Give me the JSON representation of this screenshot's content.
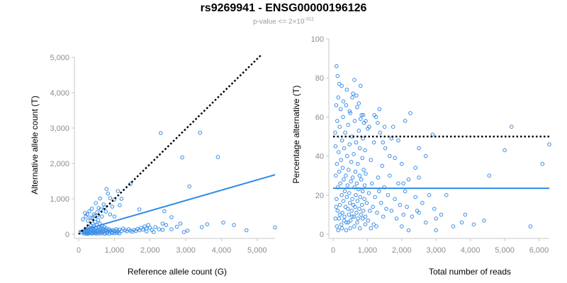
{
  "header": {
    "title": "rs9269941 - ENSG00000196126",
    "pvalue_prefix": "p-value <= 2×10",
    "pvalue_exponent": "-311"
  },
  "colors": {
    "point": "#3a8ee6",
    "fit_line": "#2f8ae8",
    "reference_line": "#000000",
    "axis": "#c8c8c8",
    "tick_label": "#8c8c8c"
  },
  "chart_data": [
    {
      "type": "scatter",
      "name": "allele-counts",
      "title": "",
      "xlabel": "Reference allele count (G)",
      "ylabel": "Alternative allele count (T)",
      "xlim": [
        0,
        5500
      ],
      "ylim": [
        0,
        5000
      ],
      "xticks": [
        0,
        1000,
        2000,
        3000,
        4000,
        5000
      ],
      "xtick_labels": [
        "0",
        "1,000",
        "2,000",
        "3,000",
        "4,000",
        "5,000"
      ],
      "yticks": [
        0,
        1000,
        2000,
        3000,
        4000,
        5000
      ],
      "ytick_labels": [
        "0",
        "1,000",
        "2,000",
        "3,000",
        "4,000",
        "5,000"
      ],
      "points": [
        [
          100,
          40
        ],
        [
          140,
          60
        ],
        [
          160,
          90
        ],
        [
          180,
          50
        ],
        [
          200,
          120
        ],
        [
          210,
          30
        ],
        [
          230,
          70
        ],
        [
          250,
          160
        ],
        [
          260,
          40
        ],
        [
          280,
          200
        ],
        [
          290,
          90
        ],
        [
          310,
          60
        ],
        [
          320,
          140
        ],
        [
          340,
          250
        ],
        [
          350,
          100
        ],
        [
          360,
          40
        ],
        [
          380,
          180
        ],
        [
          390,
          300
        ],
        [
          400,
          80
        ],
        [
          420,
          130
        ],
        [
          430,
          220
        ],
        [
          440,
          60
        ],
        [
          460,
          350
        ],
        [
          470,
          110
        ],
        [
          480,
          170
        ],
        [
          500,
          50
        ],
        [
          510,
          260
        ],
        [
          520,
          90
        ],
        [
          540,
          140
        ],
        [
          550,
          400
        ],
        [
          560,
          200
        ],
        [
          580,
          70
        ],
        [
          590,
          300
        ],
        [
          600,
          120
        ],
        [
          620,
          180
        ],
        [
          630,
          60
        ],
        [
          650,
          240
        ],
        [
          660,
          100
        ],
        [
          680,
          150
        ],
        [
          700,
          80
        ],
        [
          720,
          200
        ],
        [
          740,
          130
        ],
        [
          760,
          90
        ],
        [
          780,
          170
        ],
        [
          800,
          60
        ],
        [
          820,
          110
        ],
        [
          850,
          140
        ],
        [
          870,
          80
        ],
        [
          900,
          100
        ],
        [
          930,
          60
        ],
        [
          960,
          120
        ],
        [
          990,
          90
        ],
        [
          1020,
          70
        ],
        [
          1050,
          140
        ],
        [
          1080,
          100
        ],
        [
          1110,
          60
        ],
        [
          1150,
          130
        ],
        [
          1200,
          90
        ],
        [
          1250,
          160
        ],
        [
          1300,
          110
        ],
        [
          1350,
          80
        ],
        [
          1400,
          140
        ],
        [
          1450,
          100
        ],
        [
          1500,
          70
        ],
        [
          1550,
          120
        ],
        [
          1600,
          90
        ],
        [
          1650,
          150
        ],
        [
          1700,
          110
        ],
        [
          1750,
          180
        ],
        [
          1800,
          130
        ],
        [
          1850,
          220
        ],
        [
          1900,
          160
        ],
        [
          1950,
          260
        ],
        [
          2000,
          180
        ],
        [
          2050,
          120
        ],
        [
          2150,
          200
        ],
        [
          2250,
          140
        ],
        [
          2350,
          300
        ],
        [
          120,
          420
        ],
        [
          180,
          600
        ],
        [
          240,
          560
        ],
        [
          300,
          650
        ],
        [
          330,
          470
        ],
        [
          370,
          720
        ],
        [
          420,
          560
        ],
        [
          480,
          880
        ],
        [
          520,
          620
        ],
        [
          560,
          740
        ],
        [
          600,
          1010
        ],
        [
          650,
          500
        ],
        [
          700,
          840
        ],
        [
          760,
          640
        ],
        [
          820,
          1150
        ],
        [
          880,
          560
        ],
        [
          940,
          780
        ],
        [
          1000,
          980
        ],
        [
          1150,
          820
        ],
        [
          1200,
          1000
        ],
        [
          200,
          500
        ],
        [
          260,
          380
        ],
        [
          380,
          450
        ],
        [
          450,
          520
        ],
        [
          540,
          540
        ],
        [
          620,
          700
        ],
        [
          730,
          760
        ],
        [
          780,
          1280
        ],
        [
          880,
          1020
        ],
        [
          1000,
          500
        ],
        [
          1100,
          1220
        ],
        [
          1450,
          1420
        ],
        [
          1700,
          700
        ],
        [
          2300,
          2860
        ],
        [
          2900,
          2170
        ],
        [
          3400,
          2870
        ],
        [
          3900,
          2180
        ],
        [
          3100,
          1350
        ],
        [
          2400,
          650
        ],
        [
          2600,
          480
        ],
        [
          2950,
          60
        ],
        [
          3450,
          200
        ],
        [
          3600,
          280
        ],
        [
          4050,
          330
        ],
        [
          4350,
          260
        ],
        [
          4700,
          110
        ],
        [
          5500,
          190
        ],
        [
          2450,
          260
        ],
        [
          2850,
          300
        ],
        [
          3050,
          100
        ],
        [
          2750,
          210
        ],
        [
          2350,
          120
        ],
        [
          1900,
          80
        ],
        [
          2100,
          60
        ],
        [
          2600,
          140
        ],
        [
          150,
          20
        ],
        [
          220,
          10
        ],
        [
          270,
          15
        ],
        [
          330,
          25
        ],
        [
          380,
          20
        ],
        [
          440,
          30
        ],
        [
          490,
          15
        ],
        [
          550,
          25
        ],
        [
          610,
          20
        ],
        [
          670,
          30
        ],
        [
          730,
          15
        ],
        [
          790,
          25
        ],
        [
          860,
          20
        ],
        [
          930,
          30
        ],
        [
          1000,
          25
        ],
        [
          1070,
          35
        ],
        [
          1140,
          20
        ]
      ],
      "fit_line": {
        "label": "",
        "x": [
          0,
          5500
        ],
        "y": [
          80,
          1680
        ]
      },
      "reference_line": {
        "label": "",
        "x": [
          0,
          5500
        ],
        "y": [
          0,
          5450
        ]
      }
    },
    {
      "type": "scatter",
      "name": "percentage-alt",
      "title": "",
      "xlabel": "Total number of reads",
      "ylabel": "Percentage alternative (T)",
      "xlim": [
        0,
        6300
      ],
      "ylim": [
        0,
        100
      ],
      "xticks": [
        0,
        1000,
        2000,
        3000,
        4000,
        5000,
        6000
      ],
      "xtick_labels": [
        "0",
        "1,000",
        "2,000",
        "3,000",
        "4,000",
        "5,000",
        "6,000"
      ],
      "yticks": [
        0,
        20,
        40,
        60,
        80,
        100
      ],
      "ytick_labels": [
        "0",
        "20",
        "40",
        "60",
        "80",
        "100"
      ],
      "points": [
        [
          60,
          52
        ],
        [
          70,
          45
        ],
        [
          80,
          30
        ],
        [
          90,
          66
        ],
        [
          100,
          18
        ],
        [
          110,
          36
        ],
        [
          120,
          58
        ],
        [
          130,
          12
        ],
        [
          140,
          24
        ],
        [
          150,
          70
        ],
        [
          160,
          42
        ],
        [
          170,
          8
        ],
        [
          180,
          32
        ],
        [
          190,
          55
        ],
        [
          200,
          15
        ],
        [
          210,
          26
        ],
        [
          220,
          64
        ],
        [
          230,
          38
        ],
        [
          240,
          5
        ],
        [
          250,
          20
        ],
        [
          260,
          48
        ],
        [
          270,
          11
        ],
        [
          280,
          34
        ],
        [
          290,
          60
        ],
        [
          300,
          17
        ],
        [
          310,
          28
        ],
        [
          320,
          44
        ],
        [
          330,
          9
        ],
        [
          340,
          22
        ],
        [
          350,
          52
        ],
        [
          360,
          14
        ],
        [
          370,
          30
        ],
        [
          380,
          66
        ],
        [
          390,
          6
        ],
        [
          400,
          19
        ],
        [
          410,
          40
        ],
        [
          420,
          25
        ],
        [
          430,
          13
        ],
        [
          440,
          56
        ],
        [
          450,
          33
        ],
        [
          460,
          10
        ],
        [
          470,
          21
        ],
        [
          480,
          46
        ],
        [
          490,
          16
        ],
        [
          500,
          62
        ],
        [
          510,
          7
        ],
        [
          520,
          27
        ],
        [
          530,
          37
        ],
        [
          540,
          12
        ],
        [
          550,
          50
        ],
        [
          560,
          18
        ],
        [
          570,
          29
        ],
        [
          580,
          72
        ],
        [
          590,
          15
        ],
        [
          600,
          41
        ],
        [
          610,
          9
        ],
        [
          620,
          24
        ],
        [
          630,
          58
        ],
        [
          640,
          14
        ],
        [
          650,
          32
        ],
        [
          660,
          20
        ],
        [
          670,
          47
        ],
        [
          680,
          11
        ],
        [
          690,
          26
        ],
        [
          700,
          65
        ],
        [
          710,
          17
        ],
        [
          720,
          36
        ],
        [
          730,
          8
        ],
        [
          740,
          23
        ],
        [
          750,
          53
        ],
        [
          760,
          13
        ],
        [
          770,
          30
        ],
        [
          780,
          44
        ],
        [
          790,
          19
        ],
        [
          800,
          76
        ],
        [
          810,
          10
        ],
        [
          820,
          28
        ],
        [
          830,
          61
        ],
        [
          840,
          15
        ],
        [
          850,
          39
        ],
        [
          860,
          22
        ],
        [
          870,
          49
        ],
        [
          880,
          12
        ],
        [
          890,
          33
        ],
        [
          900,
          57
        ],
        [
          910,
          18
        ],
        [
          920,
          25
        ],
        [
          930,
          43
        ],
        [
          940,
          9
        ],
        [
          950,
          31
        ],
        [
          980,
          16
        ],
        [
          1010,
          54
        ],
        [
          1040,
          21
        ],
        [
          1070,
          12
        ],
        [
          1100,
          38
        ],
        [
          1130,
          26
        ],
        [
          1160,
          14
        ],
        [
          1190,
          47
        ],
        [
          1220,
          19
        ],
        [
          1250,
          60
        ],
        [
          1280,
          11
        ],
        [
          1310,
          29
        ],
        [
          1340,
          22
        ],
        [
          1370,
          52
        ],
        [
          1400,
          16
        ],
        [
          1430,
          35
        ],
        [
          1460,
          9
        ],
        [
          1490,
          24
        ],
        [
          1520,
          44
        ],
        [
          1550,
          13
        ],
        [
          1600,
          20
        ],
        [
          1650,
          30
        ],
        [
          1700,
          12
        ],
        [
          1750,
          55
        ],
        [
          1800,
          18
        ],
        [
          1850,
          8
        ],
        [
          1900,
          26
        ],
        [
          1950,
          15
        ],
        [
          2000,
          36
        ],
        [
          2050,
          10
        ],
        [
          2100,
          22
        ],
        [
          2150,
          14
        ],
        [
          2200,
          28
        ],
        [
          2300,
          9
        ],
        [
          2400,
          19
        ],
        [
          2450,
          12
        ],
        [
          2500,
          29
        ],
        [
          2600,
          16
        ],
        [
          2700,
          6
        ],
        [
          2800,
          20
        ],
        [
          2900,
          51
        ],
        [
          2950,
          13
        ],
        [
          3000,
          8
        ],
        [
          3150,
          10
        ],
        [
          3300,
          20
        ],
        [
          3500,
          4
        ],
        [
          3750,
          6
        ],
        [
          3850,
          10
        ],
        [
          4100,
          5
        ],
        [
          4400,
          7
        ],
        [
          4550,
          30
        ],
        [
          5000,
          43
        ],
        [
          5200,
          55
        ],
        [
          5750,
          4
        ],
        [
          6100,
          36
        ],
        [
          6300,
          46
        ],
        [
          2000,
          4
        ],
        [
          2200,
          2
        ],
        [
          2500,
          11
        ],
        [
          3000,
          2
        ],
        [
          100,
          86
        ],
        [
          130,
          81
        ],
        [
          180,
          77
        ],
        [
          250,
          76
        ],
        [
          300,
          68
        ],
        [
          400,
          74
        ],
        [
          480,
          63
        ],
        [
          560,
          70
        ],
        [
          620,
          79
        ],
        [
          680,
          71
        ],
        [
          750,
          67
        ],
        [
          800,
          59
        ],
        [
          880,
          61
        ],
        [
          950,
          58
        ],
        [
          1050,
          55
        ],
        [
          1200,
          61
        ],
        [
          1300,
          57
        ],
        [
          1350,
          64
        ],
        [
          1500,
          55
        ],
        [
          1700,
          49
        ],
        [
          70,
          8
        ],
        [
          90,
          14
        ],
        [
          110,
          4
        ],
        [
          150,
          2
        ],
        [
          200,
          10
        ],
        [
          260,
          3
        ],
        [
          320,
          7
        ],
        [
          380,
          2
        ],
        [
          440,
          6
        ],
        [
          500,
          3
        ],
        [
          560,
          9
        ],
        [
          620,
          4
        ],
        [
          700,
          6
        ],
        [
          780,
          3
        ],
        [
          860,
          8
        ],
        [
          940,
          5
        ],
        [
          1020,
          7
        ],
        [
          1100,
          3
        ],
        [
          1180,
          5
        ],
        [
          1260,
          4
        ],
        [
          2100,
          58
        ],
        [
          2500,
          44
        ],
        [
          2400,
          34
        ],
        [
          2250,
          62
        ],
        [
          2700,
          40
        ],
        [
          1900,
          48
        ],
        [
          1800,
          39
        ],
        [
          1650,
          40
        ],
        [
          1450,
          47
        ],
        [
          2050,
          26
        ]
      ],
      "fit_line": {
        "label": "",
        "x": [
          0,
          6300
        ],
        "y": [
          23.5,
          23.5
        ]
      },
      "reference_line": {
        "label": "",
        "x": [
          0,
          6300
        ],
        "y": [
          50,
          50
        ]
      }
    }
  ]
}
